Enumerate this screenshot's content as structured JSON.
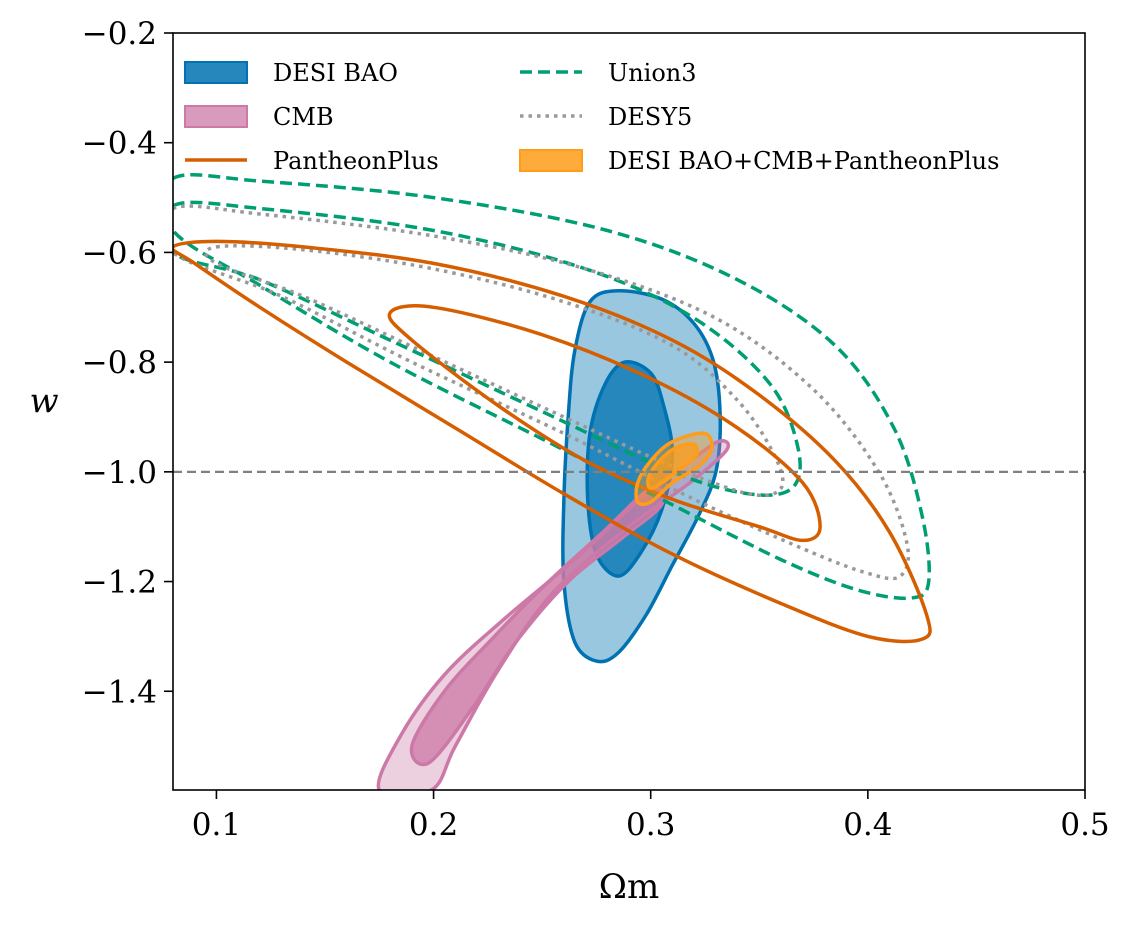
{
  "chart_data": {
    "type": "contour",
    "title": "",
    "xlabel": "Ωm",
    "ylabel": "w",
    "xlim": [
      0.08,
      0.5
    ],
    "ylim": [
      -1.58,
      -0.2
    ],
    "x_ticks": [
      0.1,
      0.2,
      0.3,
      0.4,
      0.5
    ],
    "x_tick_labels": [
      "0.1",
      "0.2",
      "0.3",
      "0.4",
      "0.5"
    ],
    "y_ticks": [
      -0.2,
      -0.4,
      -0.6,
      -0.8,
      -1.0,
      -1.2,
      -1.4
    ],
    "y_tick_labels": [
      "−0.2",
      "−0.4",
      "−0.6",
      "−0.8",
      "−1.0",
      "−1.2",
      "−1.4"
    ],
    "legend_position": "top",
    "reference_lines": [
      {
        "axis": "y",
        "value": -1.0,
        "style": "dashed",
        "color": "#808080"
      }
    ],
    "series": [
      {
        "name": "DESI BAO",
        "style": "filled",
        "color": "#0072b2",
        "contours": [
          {
            "level": "outer",
            "points": [
              [
                0.285,
                -0.67
              ],
              [
                0.305,
                -0.685
              ],
              [
                0.32,
                -0.73
              ],
              [
                0.329,
                -0.8
              ],
              [
                0.332,
                -0.9
              ],
              [
                0.33,
                -1.0
              ],
              [
                0.322,
                -1.08
              ],
              [
                0.31,
                -1.17
              ],
              [
                0.298,
                -1.26
              ],
              [
                0.285,
                -1.33
              ],
              [
                0.275,
                -1.345
              ],
              [
                0.265,
                -1.31
              ],
              [
                0.26,
                -1.2
              ],
              [
                0.26,
                -1.05
              ],
              [
                0.262,
                -0.9
              ],
              [
                0.265,
                -0.78
              ],
              [
                0.272,
                -0.69
              ]
            ]
          },
          {
            "level": "inner",
            "points": [
              [
                0.288,
                -0.8
              ],
              [
                0.3,
                -0.82
              ],
              [
                0.306,
                -0.88
              ],
              [
                0.31,
                -0.97
              ],
              [
                0.305,
                -1.07
              ],
              [
                0.295,
                -1.15
              ],
              [
                0.285,
                -1.19
              ],
              [
                0.275,
                -1.15
              ],
              [
                0.271,
                -1.05
              ],
              [
                0.272,
                -0.93
              ],
              [
                0.279,
                -0.84
              ]
            ]
          }
        ]
      },
      {
        "name": "CMB",
        "style": "filled",
        "color": "#cc79a7",
        "contours": [
          {
            "level": "outer",
            "points": [
              [
                0.331,
                -0.945
              ],
              [
                0.335,
                -0.96
              ],
              [
                0.318,
                -1.02
              ],
              [
                0.29,
                -1.1
              ],
              [
                0.255,
                -1.22
              ],
              [
                0.23,
                -1.36
              ],
              [
                0.21,
                -1.5
              ],
              [
                0.199,
                -1.58
              ],
              [
                0.175,
                -1.58
              ],
              [
                0.185,
                -1.48
              ],
              [
                0.205,
                -1.37
              ],
              [
                0.232,
                -1.27
              ],
              [
                0.265,
                -1.16
              ],
              [
                0.295,
                -1.05
              ],
              [
                0.315,
                -0.99
              ]
            ]
          },
          {
            "level": "inner",
            "points": [
              [
                0.3,
                -1.03
              ],
              [
                0.305,
                -1.06
              ],
              [
                0.287,
                -1.12
              ],
              [
                0.262,
                -1.2
              ],
              [
                0.238,
                -1.31
              ],
              [
                0.218,
                -1.43
              ],
              [
                0.198,
                -1.53
              ],
              [
                0.19,
                -1.5
              ],
              [
                0.205,
                -1.4
              ],
              [
                0.228,
                -1.3
              ],
              [
                0.253,
                -1.2
              ],
              [
                0.278,
                -1.11
              ]
            ]
          }
        ]
      },
      {
        "name": "PantheonPlus",
        "style": "solid",
        "color": "#d55e00",
        "contours": [
          {
            "level": "outer",
            "points": [
              [
                0.08,
                -0.59
              ],
              [
                0.1,
                -0.58
              ],
              [
                0.14,
                -0.59
              ],
              [
                0.2,
                -0.62
              ],
              [
                0.26,
                -0.68
              ],
              [
                0.31,
                -0.76
              ],
              [
                0.35,
                -0.86
              ],
              [
                0.385,
                -0.98
              ],
              [
                0.41,
                -1.11
              ],
              [
                0.427,
                -1.26
              ],
              [
                0.425,
                -1.305
              ],
              [
                0.4,
                -1.3
              ],
              [
                0.36,
                -1.24
              ],
              [
                0.31,
                -1.15
              ],
              [
                0.26,
                -1.04
              ],
              [
                0.21,
                -0.92
              ],
              [
                0.16,
                -0.8
              ],
              [
                0.12,
                -0.7
              ],
              [
                0.09,
                -0.62
              ]
            ]
          },
          {
            "level": "inner",
            "points": [
              [
                0.18,
                -0.71
              ],
              [
                0.2,
                -0.7
              ],
              [
                0.25,
                -0.75
              ],
              [
                0.3,
                -0.83
              ],
              [
                0.34,
                -0.92
              ],
              [
                0.37,
                -1.02
              ],
              [
                0.378,
                -1.1
              ],
              [
                0.37,
                -1.125
              ],
              [
                0.35,
                -1.1
              ],
              [
                0.31,
                -1.05
              ],
              [
                0.27,
                -0.98
              ],
              [
                0.23,
                -0.88
              ],
              [
                0.19,
                -0.76
              ]
            ]
          }
        ]
      },
      {
        "name": "Union3",
        "style": "dashed",
        "color": "#009e73",
        "contours": [
          {
            "level": "outer",
            "points": [
              [
                0.08,
                -0.465
              ],
              [
                0.12,
                -0.47
              ],
              [
                0.2,
                -0.5
              ],
              [
                0.28,
                -0.56
              ],
              [
                0.34,
                -0.65
              ],
              [
                0.385,
                -0.77
              ],
              [
                0.412,
                -0.92
              ],
              [
                0.425,
                -1.08
              ],
              [
                0.428,
                -1.2
              ],
              [
                0.42,
                -1.23
              ],
              [
                0.395,
                -1.215
              ],
              [
                0.36,
                -1.16
              ],
              [
                0.31,
                -1.06
              ],
              [
                0.25,
                -0.94
              ],
              [
                0.18,
                -0.8
              ],
              [
                0.12,
                -0.66
              ],
              [
                0.08,
                -0.56
              ]
            ]
          },
          {
            "level": "inner",
            "points": [
              [
                0.08,
                -0.515
              ],
              [
                0.12,
                -0.52
              ],
              [
                0.2,
                -0.56
              ],
              [
                0.27,
                -0.63
              ],
              [
                0.32,
                -0.72
              ],
              [
                0.355,
                -0.84
              ],
              [
                0.368,
                -0.96
              ],
              [
                0.365,
                -1.03
              ],
              [
                0.345,
                -1.04
              ],
              [
                0.31,
                -1.0
              ],
              [
                0.25,
                -0.89
              ],
              [
                0.18,
                -0.76
              ],
              [
                0.12,
                -0.65
              ],
              [
                0.08,
                -0.6
              ]
            ]
          }
        ]
      },
      {
        "name": "DESY5",
        "style": "dotted",
        "color": "#999999",
        "contours": [
          {
            "level": "outer",
            "points": [
              [
                0.08,
                -0.52
              ],
              [
                0.12,
                -0.53
              ],
              [
                0.2,
                -0.57
              ],
              [
                0.27,
                -0.63
              ],
              [
                0.33,
                -0.72
              ],
              [
                0.375,
                -0.85
              ],
              [
                0.405,
                -1.0
              ],
              [
                0.418,
                -1.13
              ],
              [
                0.415,
                -1.19
              ],
              [
                0.4,
                -1.185
              ],
              [
                0.37,
                -1.14
              ],
              [
                0.32,
                -1.05
              ],
              [
                0.26,
                -0.93
              ],
              [
                0.19,
                -0.8
              ],
              [
                0.13,
                -0.68
              ],
              [
                0.08,
                -0.6
              ]
            ]
          },
          {
            "level": "inner",
            "points": [
              [
                0.1,
                -0.59
              ],
              [
                0.14,
                -0.595
              ],
              [
                0.2,
                -0.63
              ],
              [
                0.26,
                -0.69
              ],
              [
                0.31,
                -0.77
              ],
              [
                0.34,
                -0.87
              ],
              [
                0.357,
                -0.97
              ],
              [
                0.36,
                -1.03
              ],
              [
                0.345,
                -1.04
              ],
              [
                0.31,
                -0.99
              ],
              [
                0.26,
                -0.9
              ],
              [
                0.2,
                -0.79
              ],
              [
                0.14,
                -0.68
              ],
              [
                0.1,
                -0.62
              ]
            ]
          }
        ]
      },
      {
        "name": "DESI BAO+CMB+PantheonPlus",
        "style": "filled",
        "color": "#ff9c1a",
        "contours": [
          {
            "level": "outer",
            "points": [
              [
                0.325,
                -0.93
              ],
              [
                0.328,
                -0.96
              ],
              [
                0.322,
                -0.99
              ],
              [
                0.31,
                -1.02
              ],
              [
                0.3,
                -1.055
              ],
              [
                0.294,
                -1.055
              ],
              [
                0.294,
                -1.02
              ],
              [
                0.3,
                -0.98
              ],
              [
                0.31,
                -0.945
              ]
            ]
          },
          {
            "level": "inner",
            "points": [
              [
                0.32,
                -0.95
              ],
              [
                0.321,
                -0.97
              ],
              [
                0.315,
                -0.99
              ],
              [
                0.307,
                -1.015
              ],
              [
                0.3,
                -1.03
              ],
              [
                0.299,
                -1.01
              ],
              [
                0.304,
                -0.98
              ],
              [
                0.312,
                -0.955
              ]
            ]
          }
        ]
      }
    ]
  }
}
